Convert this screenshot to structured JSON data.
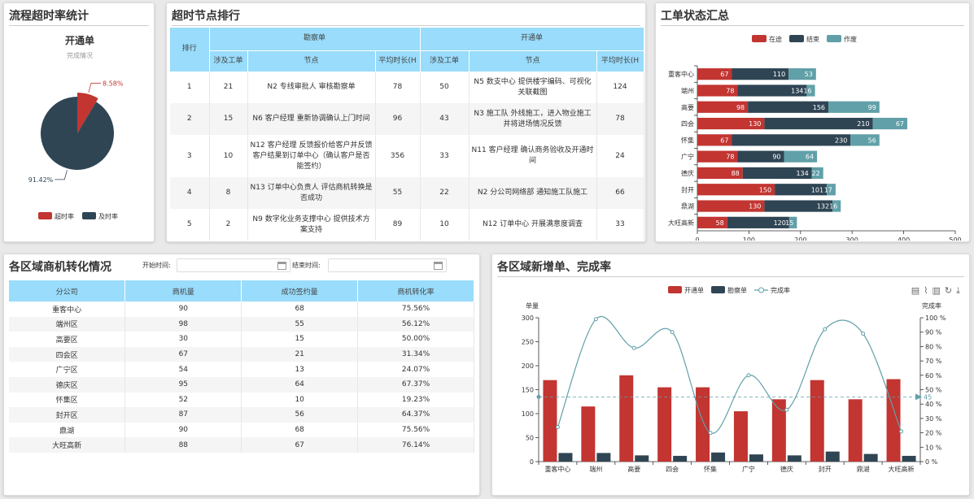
{
  "p1": {
    "title": "流程超时率统计",
    "chart_title": "开通单",
    "chart_sub": "完成情况"
  },
  "p2": {
    "title": "超时节点排行"
  },
  "p3": {
    "title": "工单状态汇总"
  },
  "p4": {
    "title": "各区域商机转化情况",
    "start_label": "开始时间:",
    "end_label": "结束时间:"
  },
  "p5": {
    "title": "各区域新增单、完成率"
  },
  "rank_table": {
    "rank_header": "排行",
    "group1": "勘察单",
    "group2": "开通单",
    "sub_headers": [
      "涉及工单",
      "节点",
      "平均时长(H"
    ],
    "rows": [
      {
        "rank": "1",
        "a_count": "21",
        "a_node": "N2 专线审批人 审核勘察单",
        "a_avg": "78",
        "b_count": "50",
        "b_node": "N5 数支中心 提供楼宇编码、可视化关联截图",
        "b_avg": "124"
      },
      {
        "rank": "2",
        "a_count": "15",
        "a_node": "N6 客户经理 重新协调确认上门时间",
        "a_avg": "96",
        "b_count": "43",
        "b_node": "N3 施工队 外线施工，进入物业施工并将进场情况反馈",
        "b_avg": "78"
      },
      {
        "rank": "3",
        "a_count": "10",
        "a_node": "N12 客户经理 反馈报价给客户并反馈客户结果到订单中心（确认客户是否能签约）",
        "a_avg": "356",
        "b_count": "33",
        "b_node": "N11 客户经理 确认商务验收及开通时间",
        "b_avg": "24"
      },
      {
        "rank": "4",
        "a_count": "8",
        "a_node": "N13 订单中心负责人 评估商机转换是否成功",
        "a_avg": "55",
        "b_count": "22",
        "b_node": "N2 分公司网络部 通知施工队施工",
        "b_avg": "66"
      },
      {
        "rank": "5",
        "a_count": "2",
        "a_node": "N9 数字化业务支撑中心 提供技术方案支持",
        "a_avg": "89",
        "b_count": "10",
        "b_node": "N12 订单中心 开展满意度调查",
        "b_avg": "33"
      }
    ]
  },
  "conv_table": {
    "headers": [
      "分公司",
      "商机量",
      "成功签约量",
      "商机转化率"
    ],
    "rows": [
      [
        "重客中心",
        "90",
        "68",
        "75.56%"
      ],
      [
        "端州区",
        "98",
        "55",
        "56.12%"
      ],
      [
        "高要区",
        "30",
        "15",
        "50.00%"
      ],
      [
        "四会区",
        "67",
        "21",
        "31.34%"
      ],
      [
        "广宁区",
        "54",
        "13",
        "24.07%"
      ],
      [
        "德庆区",
        "95",
        "64",
        "67.37%"
      ],
      [
        "怀集区",
        "52",
        "10",
        "19.23%"
      ],
      [
        "封开区",
        "87",
        "56",
        "64.37%"
      ],
      [
        "鼎湖",
        "90",
        "68",
        "75.56%"
      ],
      [
        "大旺高新",
        "88",
        "67",
        "76.14%"
      ]
    ]
  },
  "chart_data": [
    {
      "type": "pie",
      "title": "开通单",
      "subtitle": "完成情况",
      "slices": [
        {
          "name": "超时率",
          "value": 8.58,
          "label": "8.58%",
          "color": "#c23531"
        },
        {
          "name": "及时率",
          "value": 91.42,
          "label": "91.42%",
          "color": "#2f4554"
        }
      ],
      "legend": [
        "超时率",
        "及时率"
      ],
      "legend_position": "bottom"
    },
    {
      "type": "bar",
      "orientation": "horizontal",
      "stacked": true,
      "categories": [
        "重客中心",
        "端州",
        "高要",
        "四会",
        "怀集",
        "广宁",
        "德庆",
        "封开",
        "鼎湖",
        "大旺高新"
      ],
      "series": [
        {
          "name": "在途",
          "color": "#c23531",
          "values": [
            67,
            78,
            98,
            130,
            67,
            78,
            88,
            150,
            130,
            58
          ]
        },
        {
          "name": "结束",
          "color": "#2f4554",
          "values": [
            110,
            134,
            156,
            210,
            230,
            90,
            134,
            101,
            132,
            120
          ]
        },
        {
          "name": "作废",
          "color": "#61a0a8",
          "values": [
            53,
            16,
            99,
            67,
            56,
            64,
            22,
            17,
            16,
            15
          ]
        }
      ],
      "xlim": [
        0,
        500
      ],
      "xticks": [
        0,
        100,
        200,
        300,
        400,
        500
      ],
      "legend_position": "top"
    },
    {
      "type": "bar+line",
      "categories": [
        "重客中心",
        "端州",
        "高要",
        "四会",
        "怀集",
        "广宁",
        "德庆",
        "封开",
        "鼎湖",
        "大旺高新"
      ],
      "ylabel_left": "单量",
      "ylabel_right": "完成率",
      "ylim_left": [
        0,
        300
      ],
      "yticks_left": [
        0,
        50,
        100,
        150,
        200,
        250,
        300
      ],
      "ylim_right": [
        0,
        100
      ],
      "yticks_right": [
        "0 %",
        "10 %",
        "20 %",
        "30 %",
        "40 %",
        "50 %",
        "60 %",
        "70 %",
        "80 %",
        "90 %",
        "100 %"
      ],
      "series": [
        {
          "name": "开通单",
          "type": "bar",
          "color": "#c23531",
          "values": [
            170,
            115,
            180,
            155,
            155,
            105,
            130,
            170,
            130,
            172
          ]
        },
        {
          "name": "勘察单",
          "type": "bar",
          "color": "#2f4554",
          "values": [
            18,
            18,
            13,
            12,
            19,
            15,
            13,
            21,
            16,
            12
          ]
        },
        {
          "name": "完成率",
          "type": "line",
          "color": "#61a0a8",
          "values": [
            24,
            99,
            79,
            90,
            20,
            60,
            36,
            92,
            89,
            21
          ]
        }
      ],
      "markline": {
        "value": 45,
        "label": "45"
      },
      "legend_position": "top"
    }
  ]
}
